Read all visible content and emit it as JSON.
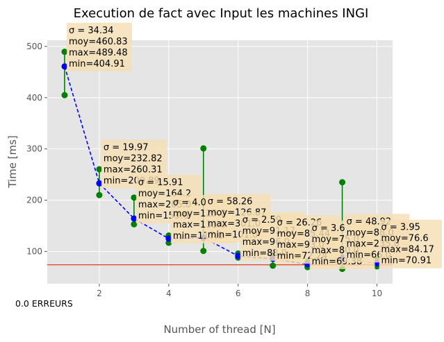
{
  "chart_data": {
    "type": "line",
    "title": "Execution de fact avec Input les machines INGI",
    "xlabel": "Number of thread [N]",
    "ylabel": "Time [ms]",
    "xlim": [
      0.5,
      10.45
    ],
    "ylim": [
      37,
      512
    ],
    "xticks": [
      2,
      4,
      6,
      8,
      10
    ],
    "yticks": [
      100,
      200,
      300,
      400,
      500
    ],
    "grid": true,
    "colors": {
      "background": "#e5e5e5",
      "grid": "#ffffff",
      "mean_line": "#0000ff",
      "range": "#008000",
      "reference": "#e24a33",
      "annotation_box": "#f5deb3"
    },
    "x": [
      1,
      2,
      3,
      4,
      5,
      6,
      7,
      8,
      9,
      10
    ],
    "mean": [
      460.83,
      232.82,
      164.2,
      125.0,
      126.87,
      91.17,
      85.44,
      75.0,
      88.0,
      76.6
    ],
    "min": [
      404.91,
      209.89,
      153.0,
      117.0,
      101.0,
      88.0,
      72.24,
      69.38,
      66.0,
      70.91
    ],
    "max": [
      489.48,
      260.31,
      205.0,
      131.0,
      301.0,
      96.0,
      93.0,
      80.0,
      235.0,
      84.17
    ],
    "annotations": [
      {
        "x": 1,
        "lines": [
          "σ = 34.34",
          "moy=460.83",
          "max=489.48",
          "min=404.91"
        ]
      },
      {
        "x": 2,
        "lines": [
          "σ = 19.97",
          "moy=232.82",
          "max=260.31",
          "min=209.89"
        ]
      },
      {
        "x": 3,
        "lines": [
          "σ = 15.91",
          "moy=164.2",
          "max=205.0",
          "min=153.0"
        ]
      },
      {
        "x": 4,
        "lines": [
          "σ = 4.0",
          "moy=125.0",
          "max=131.0",
          "min=117.0"
        ]
      },
      {
        "x": 5,
        "lines": [
          "σ = 58.26",
          "moy=126.87",
          "max=301.0",
          "min=101.0"
        ]
      },
      {
        "x": 6,
        "lines": [
          "σ = 2.59",
          "moy=91.17",
          "max=96.0",
          "min=88.0"
        ]
      },
      {
        "x": 7,
        "lines": [
          "σ = 26.26",
          "moy=85.44",
          "max=93.0",
          "min=72.24"
        ]
      },
      {
        "x": 8,
        "lines": [
          "σ = 3.6",
          "moy=75.0",
          "max=80.0",
          "min=69.38"
        ]
      },
      {
        "x": 9,
        "lines": [
          "σ = 48.92",
          "moy=88.0",
          "max=235.0",
          "min=66.0"
        ]
      },
      {
        "x": 10,
        "lines": [
          "σ = 3.95",
          "moy=76.6",
          "max=84.17",
          "min=70.91"
        ]
      }
    ],
    "reference_line": {
      "y": 74
    },
    "error_label": "0.0 ERREURS"
  }
}
